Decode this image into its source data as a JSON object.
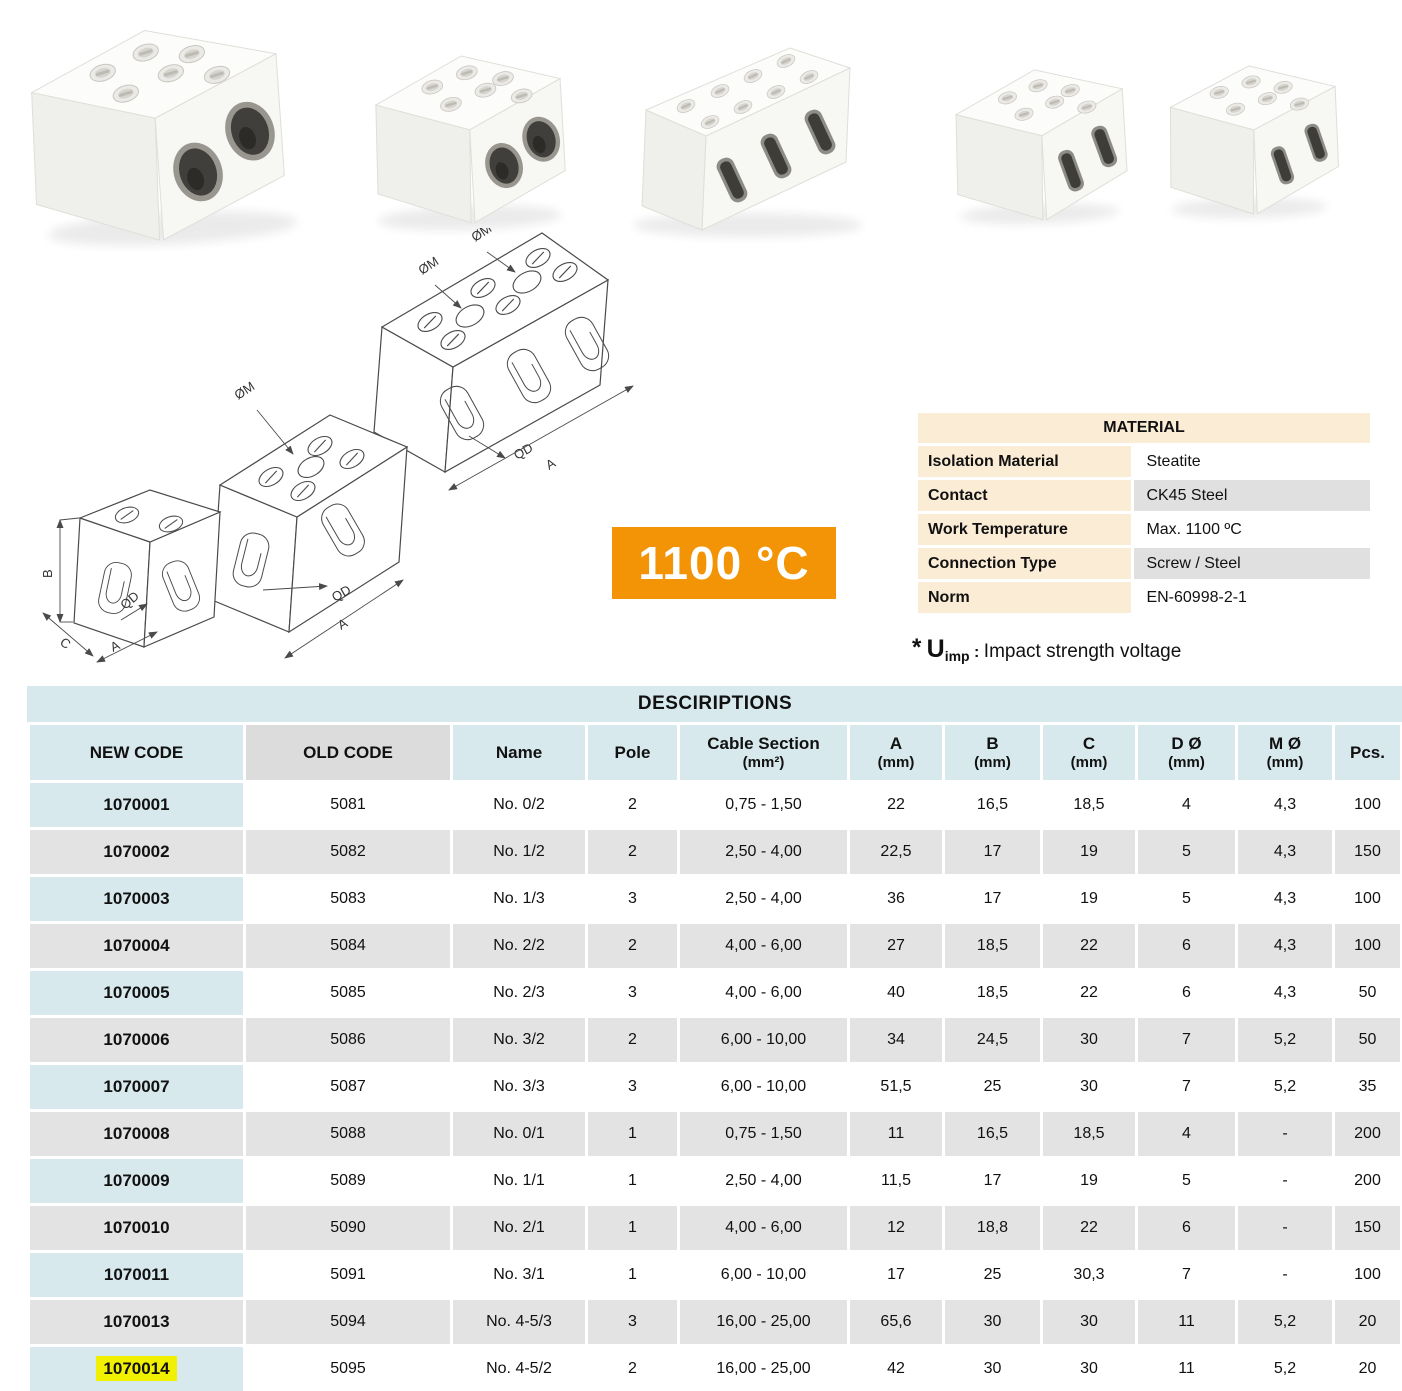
{
  "colors": {
    "accent_orange": "#F29405",
    "table_blue": "#D8E9EE",
    "row_gray": "#E3E3E3",
    "header_gray": "#DCDCDC",
    "material_peach": "#FBECD6",
    "material_gray": "#E0E0E0",
    "highlight_yellow": "#F0F000"
  },
  "photos": {
    "items": [
      "large-2-pole-porcelain-block",
      "medium-2-pole-porcelain-block",
      "long-3-pole-porcelain-block",
      "small-2-pole-porcelain-block",
      "small-2-pole-porcelain-block"
    ]
  },
  "badge": {
    "label": "1100 °C"
  },
  "material_table": {
    "title": "MATERIAL",
    "rows": [
      {
        "label": "Isolation Material",
        "value": "Steatite"
      },
      {
        "label": "Contact",
        "value": "CK45 Steel"
      },
      {
        "label": "Work Temperature",
        "value": "Max. 1100 ºC"
      },
      {
        "label": "Connection Type",
        "value": "Screw / Steel"
      },
      {
        "label": "Norm",
        "value": "EN-60998-2-1"
      }
    ]
  },
  "uimp_note": {
    "star": "*",
    "symbol": "U",
    "subscript": "imp",
    "separator": " : ",
    "text": "Impact strength voltage"
  },
  "drawings": {
    "labels": {
      "om": "ØM",
      "qd": "QD",
      "a": "A",
      "b": "B",
      "c": "C"
    }
  },
  "descriptions_table": {
    "title": "DESCIRIPTIONS",
    "columns": [
      {
        "label": "NEW CODE"
      },
      {
        "label": "OLD CODE"
      },
      {
        "label": "Name"
      },
      {
        "label": "Pole"
      },
      {
        "label": "Cable Section",
        "sub": "(mm²)"
      },
      {
        "label": "A",
        "sub": "(mm)"
      },
      {
        "label": "B",
        "sub": "(mm)"
      },
      {
        "label": "C",
        "sub": "(mm)"
      },
      {
        "label": "D Ø",
        "sub": "(mm)"
      },
      {
        "label": "M Ø",
        "sub": "(mm)"
      },
      {
        "label": "Pcs."
      }
    ],
    "rows": [
      {
        "new_code": "1070001",
        "old_code": "5081",
        "name": "No. 0/2",
        "pole": "2",
        "cable_section": "0,75 - 1,50",
        "a": "22",
        "b": "16,5",
        "c": "18,5",
        "d_diameter": "4",
        "m_diameter": "4,3",
        "pcs": "100"
      },
      {
        "new_code": "1070002",
        "old_code": "5082",
        "name": "No. 1/2",
        "pole": "2",
        "cable_section": "2,50 - 4,00",
        "a": "22,5",
        "b": "17",
        "c": "19",
        "d_diameter": "5",
        "m_diameter": "4,3",
        "pcs": "150"
      },
      {
        "new_code": "1070003",
        "old_code": "5083",
        "name": "No. 1/3",
        "pole": "3",
        "cable_section": "2,50 - 4,00",
        "a": "36",
        "b": "17",
        "c": "19",
        "d_diameter": "5",
        "m_diameter": "4,3",
        "pcs": "100"
      },
      {
        "new_code": "1070004",
        "old_code": "5084",
        "name": "No. 2/2",
        "pole": "2",
        "cable_section": "4,00 - 6,00",
        "a": "27",
        "b": "18,5",
        "c": "22",
        "d_diameter": "6",
        "m_diameter": "4,3",
        "pcs": "100"
      },
      {
        "new_code": "1070005",
        "old_code": "5085",
        "name": "No. 2/3",
        "pole": "3",
        "cable_section": "4,00 - 6,00",
        "a": "40",
        "b": "18,5",
        "c": "22",
        "d_diameter": "6",
        "m_diameter": "4,3",
        "pcs": "50"
      },
      {
        "new_code": "1070006",
        "old_code": "5086",
        "name": "No. 3/2",
        "pole": "2",
        "cable_section": "6,00 - 10,00",
        "a": "34",
        "b": "24,5",
        "c": "30",
        "d_diameter": "7",
        "m_diameter": "5,2",
        "pcs": "50"
      },
      {
        "new_code": "1070007",
        "old_code": "5087",
        "name": "No. 3/3",
        "pole": "3",
        "cable_section": "6,00 - 10,00",
        "a": "51,5",
        "b": "25",
        "c": "30",
        "d_diameter": "7",
        "m_diameter": "5,2",
        "pcs": "35"
      },
      {
        "new_code": "1070008",
        "old_code": "5088",
        "name": "No. 0/1",
        "pole": "1",
        "cable_section": "0,75 - 1,50",
        "a": "11",
        "b": "16,5",
        "c": "18,5",
        "d_diameter": "4",
        "m_diameter": "-",
        "pcs": "200"
      },
      {
        "new_code": "1070009",
        "old_code": "5089",
        "name": "No. 1/1",
        "pole": "1",
        "cable_section": "2,50 - 4,00",
        "a": "11,5",
        "b": "17",
        "c": "19",
        "d_diameter": "5",
        "m_diameter": "-",
        "pcs": "200"
      },
      {
        "new_code": "1070010",
        "old_code": "5090",
        "name": "No. 2/1",
        "pole": "1",
        "cable_section": "4,00 - 6,00",
        "a": "12",
        "b": "18,8",
        "c": "22",
        "d_diameter": "6",
        "m_diameter": "-",
        "pcs": "150"
      },
      {
        "new_code": "1070011",
        "old_code": "5091",
        "name": "No. 3/1",
        "pole": "1",
        "cable_section": "6,00 - 10,00",
        "a": "17",
        "b": "25",
        "c": "30,3",
        "d_diameter": "7",
        "m_diameter": "-",
        "pcs": "100"
      },
      {
        "new_code": "1070013",
        "old_code": "5094",
        "name": "No. 4-5/3",
        "pole": "3",
        "cable_section": "16,00 - 25,00",
        "a": "65,6",
        "b": "30",
        "c": "30",
        "d_diameter": "11",
        "m_diameter": "5,2",
        "pcs": "20"
      },
      {
        "new_code": "1070014",
        "old_code": "5095",
        "name": "No. 4-5/2",
        "pole": "2",
        "cable_section": "16,00 - 25,00",
        "a": "42",
        "b": "30",
        "c": "30",
        "d_diameter": "11",
        "m_diameter": "5,2",
        "pcs": "20",
        "highlight": true
      }
    ]
  }
}
